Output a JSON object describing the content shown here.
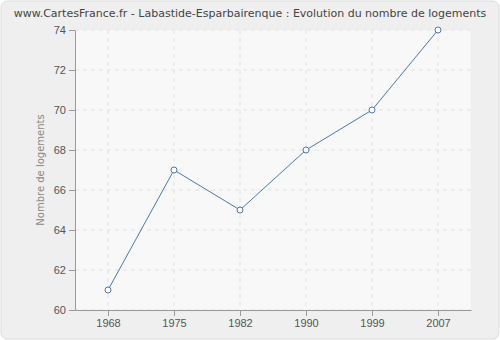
{
  "chart_data": {
    "type": "line",
    "title": "www.CartesFrance.fr - Labastide-Esparbairenque : Evolution du nombre de logements",
    "y_label": "Nombre de logements",
    "categories": [
      "1968",
      "1975",
      "1982",
      "1990",
      "1999",
      "2007"
    ],
    "values": [
      61,
      67,
      65,
      68,
      70,
      74
    ],
    "color": "#4a7ab0",
    "marker": "circle",
    "ylim": [
      60,
      74
    ],
    "yticks": [
      60,
      62,
      64,
      66,
      68,
      70,
      72,
      74
    ],
    "grid": true
  }
}
